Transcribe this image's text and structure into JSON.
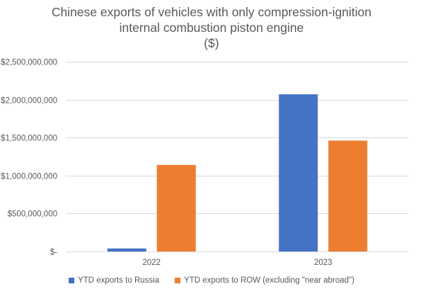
{
  "chart_data": {
    "type": "bar",
    "title_lines": [
      "Chinese exports of vehicles with only compression-ignition",
      "internal combustion piston engine",
      "($)"
    ],
    "categories": [
      "2022",
      "2023"
    ],
    "series": [
      {
        "name": "YTD exports to Russia",
        "color": "#4472C4",
        "values": [
          40000000,
          2070000000
        ]
      },
      {
        "name": "YTD exports to ROW (excluding \"near abroad\")",
        "color": "#ED7D31",
        "values": [
          1140000000,
          1460000000
        ]
      }
    ],
    "y_ticks": [
      {
        "value": 0,
        "label": "$-"
      },
      {
        "value": 500000000,
        "label": "$500,000,000"
      },
      {
        "value": 1000000000,
        "label": "$1,000,000,000"
      },
      {
        "value": 1500000000,
        "label": "$1,500,000,000"
      },
      {
        "value": 2000000000,
        "label": "$2,000,000,000"
      },
      {
        "value": 2500000000,
        "label": "$2,500,000,000"
      }
    ],
    "ylim": [
      0,
      2500000000
    ],
    "grid": true,
    "legend_position": "bottom"
  }
}
